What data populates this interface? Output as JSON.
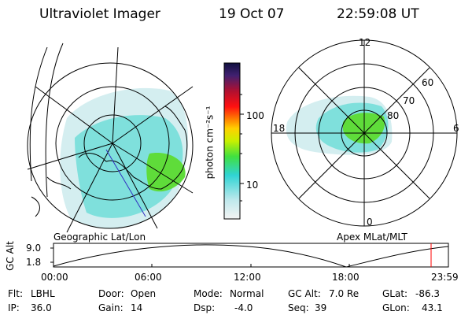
{
  "header": {
    "instrument": "Ultraviolet Imager",
    "date": "19 Oct 07",
    "time": "22:59:08 UT"
  },
  "colorbar": {
    "label": "photon cm⁻²s⁻¹",
    "ticks": [
      "100",
      "10"
    ]
  },
  "left_map": {
    "caption": "Geographic Lat/Lon"
  },
  "right_map": {
    "caption": "Apex MLat/MLT",
    "mlt_labels": [
      "12",
      "18",
      "6",
      "0"
    ],
    "lat_labels": [
      "60",
      "70",
      "80"
    ]
  },
  "altitude_plot": {
    "ylabel": "GC Alt",
    "yticks": [
      "9.0",
      "1.8"
    ],
    "xticks": [
      "00:00",
      "06:00",
      "12:00",
      "18:00",
      "23:59"
    ],
    "current_time_marker": "22:59"
  },
  "status": {
    "flt_label": "Flt:",
    "flt_value": "LBHL",
    "ip_label": "IP:",
    "ip_value": "36.0",
    "door_label": "Door:",
    "door_value": "Open",
    "gain_label": "Gain:",
    "gain_value": "14",
    "mode_label": "Mode:",
    "mode_value": "Normal",
    "dsp_label": "Dsp:",
    "dsp_value": "-4.0",
    "gcalt_label": "GC Alt:",
    "gcalt_value": "7.0 Re",
    "seq_label": "Seq:",
    "seq_value": "39",
    "glat_label": "GLat:",
    "glat_value": "-86.3",
    "glon_label": "GLon:",
    "glon_value": "43.1"
  },
  "colors": {
    "auroral_low": "#bfe8ec",
    "auroral_mid": "#3fd6d0",
    "auroral_high": "#5fdc3a",
    "marker": "#ff0000"
  }
}
